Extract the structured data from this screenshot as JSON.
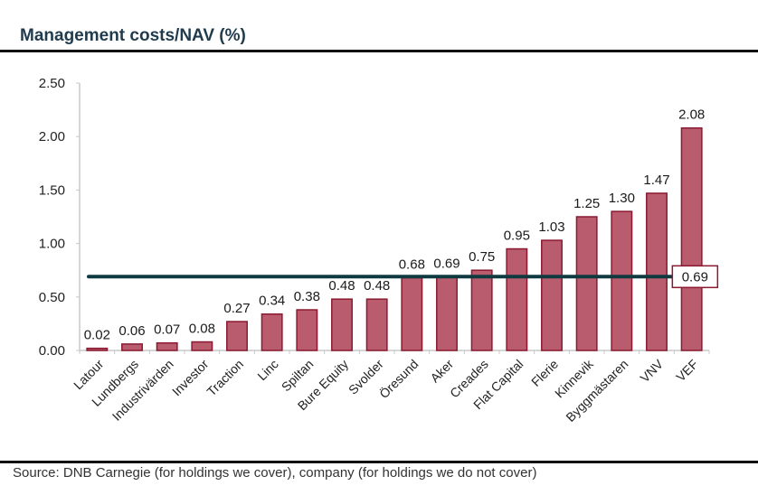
{
  "chart_data": {
    "type": "bar",
    "title": "Management costs/NAV (%)",
    "xlabel": "",
    "ylabel": "",
    "ylim": [
      0,
      2.5
    ],
    "yticks": [
      "0.00",
      "0.50",
      "1.00",
      "1.50",
      "2.00",
      "2.50"
    ],
    "ytick_values": [
      0,
      0.5,
      1.0,
      1.5,
      2.0,
      2.5
    ],
    "categories": [
      "Latour",
      "Lundbergs",
      "Industrivärden",
      "Investor",
      "Traction",
      "Linc",
      "Spiltan",
      "Bure Equity",
      "Svolder",
      "Öresund",
      "Aker",
      "Creades",
      "Flat Capital",
      "Flerie",
      "Kinnevik",
      "Byggmästaren",
      "VNV",
      "VEF"
    ],
    "values": [
      0.02,
      0.06,
      0.07,
      0.08,
      0.27,
      0.34,
      0.38,
      0.48,
      0.48,
      0.68,
      0.69,
      0.75,
      0.95,
      1.03,
      1.25,
      1.3,
      1.47,
      2.08
    ],
    "value_labels": [
      "0.02",
      "0.06",
      "0.07",
      "0.08",
      "0.27",
      "0.34",
      "0.38",
      "0.48",
      "0.48",
      "0.68",
      "0.69",
      "0.75",
      "0.95",
      "1.03",
      "1.25",
      "1.30",
      "1.47",
      "2.08"
    ],
    "reference_line": {
      "value": 0.69,
      "label": "0.69",
      "color": "#0f3a40"
    },
    "bar_color": "#b85c6e",
    "bar_edge_color": "#8b1a30",
    "grid": false,
    "legend": "none"
  },
  "source": "Source: DNB Carnegie (for holdings we cover), company (for holdings we do not cover)"
}
